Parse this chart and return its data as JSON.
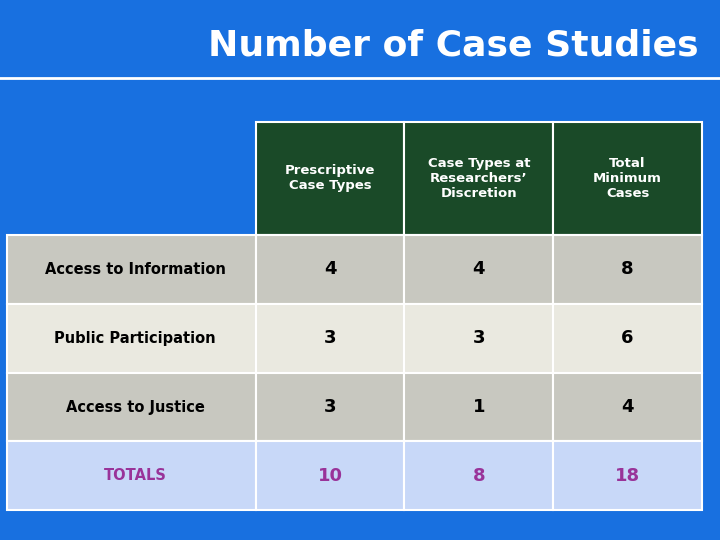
{
  "title": "Number of Case Studies",
  "title_color": "#FFFFFF",
  "title_fontsize": 26,
  "background_color": "#1870E0",
  "header_bg_color": "#1A4A28",
  "header_text_color": "#FFFFFF",
  "row_labels": [
    "Access to Information",
    "Public Participation",
    "Access to Justice",
    "TOTALS"
  ],
  "col_headers": [
    "Prescriptive\nCase Types",
    "Case Types at\nResearchers’\nDiscretion",
    "Total\nMinimum\nCases"
  ],
  "data": [
    [
      4,
      4,
      8
    ],
    [
      3,
      3,
      6
    ],
    [
      3,
      1,
      4
    ],
    [
      10,
      8,
      18
    ]
  ],
  "row_bg_colors": [
    "#C8C8C0",
    "#EAE9E0",
    "#C8C8C0",
    "#C8D8F8"
  ],
  "totals_label_color": "#993399",
  "totals_data_color": "#993399",
  "data_text_color": "#000000",
  "row_label_color": "#000000",
  "divider_color": "#FFFFFF"
}
